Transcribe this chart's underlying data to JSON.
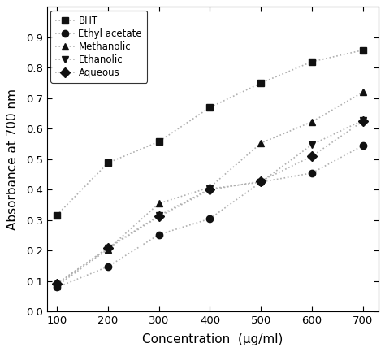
{
  "x": [
    100,
    200,
    300,
    400,
    500,
    600,
    700
  ],
  "BHT": [
    0.317,
    0.488,
    0.558,
    0.67,
    0.75,
    0.82,
    0.858
  ],
  "Ethyl_acetate": [
    0.08,
    0.148,
    0.253,
    0.305,
    0.425,
    0.455,
    0.545
  ],
  "Methanolic": [
    0.085,
    0.205,
    0.355,
    0.408,
    0.553,
    0.623,
    0.72
  ],
  "Ethanolic": [
    0.09,
    0.21,
    0.315,
    0.403,
    0.425,
    0.548,
    0.628
  ],
  "Aqueous": [
    0.093,
    0.208,
    0.312,
    0.4,
    0.428,
    0.51,
    0.625
  ],
  "xlabel": "Concentration  (μg/ml)",
  "ylabel": "Absorbance at 700 nm",
  "ylim": [
    0.0,
    1.0
  ],
  "xlim": [
    80,
    730
  ],
  "line_color": "#b0b0b0",
  "marker_color": "#111111",
  "bg_color": "#ffffff",
  "legend_labels": [
    "BHT",
    "Ethyl acetate",
    "Methanolic",
    "Ethanolic",
    "Aqueous"
  ],
  "markers": [
    "s",
    "o",
    "^",
    "v",
    "D"
  ],
  "linestyles": [
    ":",
    ":",
    ":",
    ":",
    ":"
  ],
  "marker_size": 6,
  "linewidth": 1.2
}
